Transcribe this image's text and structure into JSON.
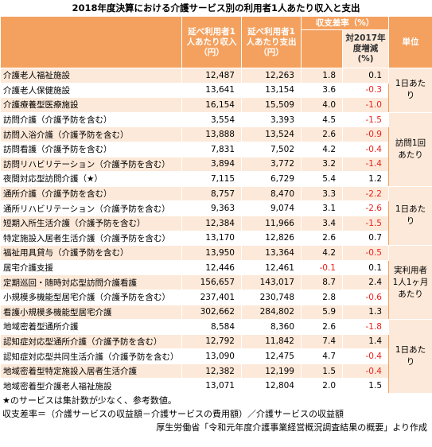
{
  "title": "2018年度決算における介護サービス別の利用者1人あたり収入と支出",
  "header": {
    "income": "延べ利用者1人あたり収入（円）",
    "expense": "延べ利用者1人あたり支出（円）",
    "margin": "収支差率（%）",
    "change": "対2017年度増減(%)",
    "unit": "単位"
  },
  "groups": [
    {
      "unit": "1日あたり",
      "rows": [
        [
          "介護老人福祉施設",
          "12,487",
          "12,263",
          "1.8",
          "0.1"
        ],
        [
          "介護老人保健施設",
          "13,641",
          "13,154",
          "3.6",
          "-0.3"
        ],
        [
          "介護療養型医療施設",
          "16,154",
          "15,509",
          "4.0",
          "-1.0"
        ]
      ]
    },
    {
      "unit": "訪問1回あたり",
      "rows": [
        [
          "訪問介護（介護予防を含む）",
          "3,554",
          "3,393",
          "4.5",
          "-1.5"
        ],
        [
          "訪問入浴介護（介護予防を含む）",
          "13,888",
          "13,524",
          "2.6",
          "-0.9"
        ],
        [
          "訪問看護（介護予防を含む）",
          "7,831",
          "7,502",
          "4.2",
          "-0.4"
        ],
        [
          "訪問リハビリテーション（介護予防を含む）",
          "3,894",
          "3,772",
          "3.2",
          "-1.4"
        ],
        [
          "夜間対応型訪問介護（★）",
          "7,115",
          "6,729",
          "5.4",
          "1.2"
        ]
      ]
    },
    {
      "unit": "1日あたり",
      "rows": [
        [
          "通所介護（介護予防を含む）",
          "8,757",
          "8,470",
          "3.3",
          "-2.2"
        ],
        [
          "通所リハビリテーション（介護予防を含む）",
          "9,363",
          "9,074",
          "3.1",
          "-2.6"
        ],
        [
          "短期入所生活介護（介護予防を含む）",
          "12,384",
          "11,966",
          "3.4",
          "-1.5"
        ],
        [
          "特定施設入居者生活介護（介護予防を含む）",
          "13,170",
          "12,826",
          "2.6",
          "0.7"
        ]
      ]
    },
    {
      "unit": "実利用者1人1ヶ月あたり",
      "rows": [
        [
          "福祉用具貸与（介護予防を含む）",
          "13,950",
          "13,364",
          "4.2",
          "-0.5"
        ],
        [
          "居宅介護支援",
          "12,446",
          "12,461",
          "-0.1",
          "0.1"
        ],
        [
          "定期巡回・随時対応型訪問介護看護",
          "156,657",
          "143,017",
          "8.7",
          "2.4"
        ],
        [
          "小規模多機能型居宅介護（介護予防を含む）",
          "237,401",
          "230,748",
          "2.8",
          "-0.6"
        ],
        [
          "看護小規模多機能型居宅介護",
          "302,662",
          "284,802",
          "5.9",
          "1.3"
        ]
      ]
    },
    {
      "unit": "1日あたり",
      "rows": [
        [
          "地域密着型通所介護",
          "8,584",
          "8,360",
          "2.6",
          "-1.8"
        ],
        [
          "認知症対応型通所介護（介護予防を含む）",
          "12,792",
          "11,842",
          "7.4",
          "1.4"
        ],
        [
          "認知症対応型共同生活介護（介護予防を含む）",
          "13,090",
          "12,475",
          "4.7",
          "-0.4"
        ],
        [
          "地域密着型特定施設入居者生活介護",
          "12,382",
          "12,199",
          "1.5",
          "-0.4"
        ],
        [
          "地域密着型介護老人福祉施設",
          "13,071",
          "12,804",
          "2.0",
          "1.5"
        ]
      ]
    }
  ],
  "notes": [
    "★のサービスは集計数が少なく、参考数値。",
    "収支差率＝（介護サービスの収益額－介護サービスの費用額）／介護サービスの収益額",
    "厚生労働省「令和元年度介護事業経営概況調査結果の概要」より作成"
  ]
}
